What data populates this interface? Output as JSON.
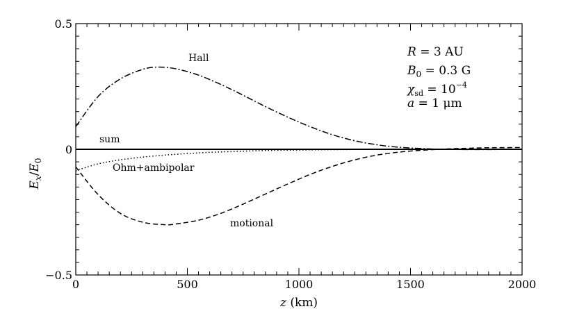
{
  "chart_data": {
    "type": "line",
    "xlabel": "z (km)",
    "ylabel": "E_x/E_0",
    "xlim": [
      0,
      2000
    ],
    "ylim": [
      -0.5,
      0.5
    ],
    "xticks": [
      0,
      500,
      1000,
      1500,
      2000
    ],
    "xtick_labels": [
      "0",
      "500",
      "1000",
      "1500",
      "2000"
    ],
    "yticks": [
      -0.5,
      0,
      0.5
    ],
    "ytick_labels": [
      "−0.5",
      "0",
      "0.5"
    ],
    "grid": false,
    "annotations": [
      "R = 3 AU",
      "B₀ = 0.3 G",
      "χsd = 10⁻⁴",
      "a = 1 μm"
    ],
    "series": [
      {
        "name": "Hall",
        "style": "dashdot",
        "x": [
          0,
          100,
          200,
          300,
          370,
          450,
          550,
          650,
          750,
          850,
          950,
          1050,
          1150,
          1250,
          1350,
          1450,
          1550,
          1650,
          1750,
          1850,
          2000
        ],
        "y": [
          0.09,
          0.21,
          0.28,
          0.318,
          0.327,
          0.32,
          0.295,
          0.258,
          0.215,
          0.17,
          0.128,
          0.09,
          0.058,
          0.034,
          0.018,
          0.008,
          0.003,
          0.0,
          -0.001,
          -0.001,
          0.0
        ]
      },
      {
        "name": "Ohm+ambipolar",
        "style": "dotted",
        "x": [
          0,
          100,
          200,
          300,
          400,
          500,
          600,
          700,
          800,
          900,
          1000,
          1200,
          1400,
          1600,
          2000
        ],
        "y": [
          -0.085,
          -0.058,
          -0.042,
          -0.031,
          -0.023,
          -0.017,
          -0.012,
          -0.009,
          -0.006,
          -0.004,
          -0.003,
          -0.001,
          0.0,
          0.0,
          0.0
        ]
      },
      {
        "name": "motional",
        "style": "dashed",
        "x": [
          0,
          100,
          200,
          300,
          400,
          450,
          550,
          650,
          750,
          850,
          950,
          1050,
          1150,
          1250,
          1350,
          1450,
          1550,
          1650,
          1750,
          1850,
          2000
        ],
        "y": [
          -0.07,
          -0.18,
          -0.255,
          -0.29,
          -0.3,
          -0.297,
          -0.282,
          -0.255,
          -0.218,
          -0.178,
          -0.138,
          -0.1,
          -0.068,
          -0.042,
          -0.023,
          -0.011,
          -0.004,
          0.001,
          0.004,
          0.006,
          0.007
        ]
      },
      {
        "name": "sum",
        "style": "solid",
        "x": [
          0,
          2000
        ],
        "y": [
          0,
          0
        ]
      }
    ]
  }
}
